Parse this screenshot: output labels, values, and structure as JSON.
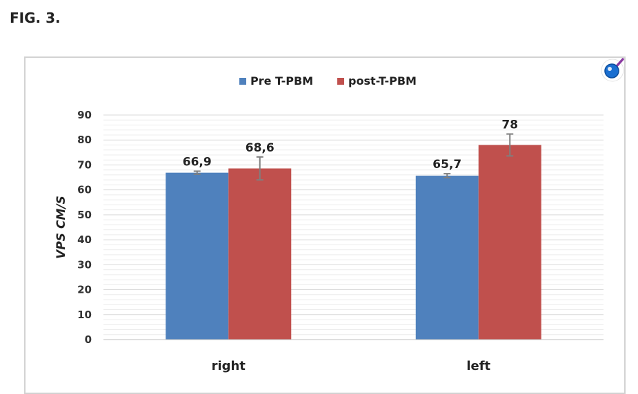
{
  "figure_label": "FIG. 3.",
  "zoom_icon": "magnifier-icon",
  "colors": {
    "pre": "#4f81bd",
    "post": "#c0504d",
    "grid": "#d9d9d9",
    "error": "#7f7f7f"
  },
  "chart_data": {
    "type": "bar",
    "categories": [
      "right",
      "left"
    ],
    "series": [
      {
        "name": "Pre T-PBM",
        "values": [
          66.9,
          65.7
        ],
        "labels": [
          "66,9",
          "65,7"
        ],
        "error": [
          0.6,
          0.8
        ]
      },
      {
        "name": "post-T-PBM",
        "values": [
          68.6,
          78
        ],
        "labels": [
          "68,6",
          "78"
        ],
        "error": [
          4.6,
          4.4
        ]
      }
    ],
    "ylabel": "VPS CM/S",
    "ylim": [
      0,
      90
    ],
    "yticks": [
      0,
      10,
      20,
      30,
      40,
      50,
      60,
      70,
      80,
      90
    ],
    "grid": true,
    "legend_position": "top-center"
  }
}
